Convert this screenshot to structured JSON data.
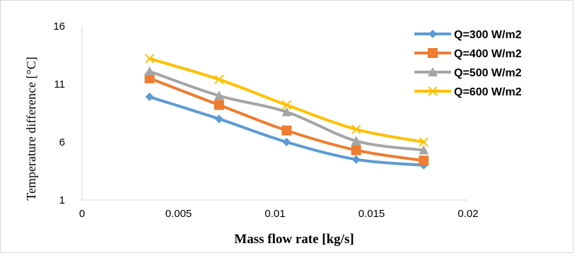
{
  "chart_data": {
    "type": "line",
    "xlabel": "Mass flow rate [kg/s]",
    "ylabel": "Temperature difference [°C]",
    "xlim": [
      0,
      0.02
    ],
    "ylim": [
      1,
      16
    ],
    "xticks": [
      0,
      0.005,
      0.01,
      0.015,
      0.02
    ],
    "xtick_labels": [
      "0",
      "0.005",
      "0.01",
      "0.015",
      "0.02"
    ],
    "yticks": [
      1,
      6,
      11,
      16
    ],
    "ytick_labels": [
      "1",
      "6",
      "11",
      "16"
    ],
    "grid": false,
    "legend_position": "right",
    "x": [
      0.0035,
      0.0071,
      0.0106,
      0.0142,
      0.0177
    ],
    "series": [
      {
        "name": "Q=300 W/m2",
        "color": "#5b9bd5",
        "marker": "diamond",
        "values": [
          9.9,
          8.0,
          6.0,
          4.5,
          4.0
        ]
      },
      {
        "name": "Q=400 W/m2",
        "color": "#ed7d31",
        "marker": "square",
        "values": [
          11.5,
          9.2,
          7.0,
          5.3,
          4.4
        ]
      },
      {
        "name": "Q=500 W/m2",
        "color": "#a5a5a5",
        "marker": "triangle",
        "values": [
          12.1,
          10.0,
          8.6,
          6.1,
          5.3
        ]
      },
      {
        "name": "Q=600 W/m2",
        "color": "#ffc000",
        "marker": "x",
        "values": [
          13.2,
          11.4,
          9.2,
          7.1,
          6.0
        ]
      }
    ]
  }
}
